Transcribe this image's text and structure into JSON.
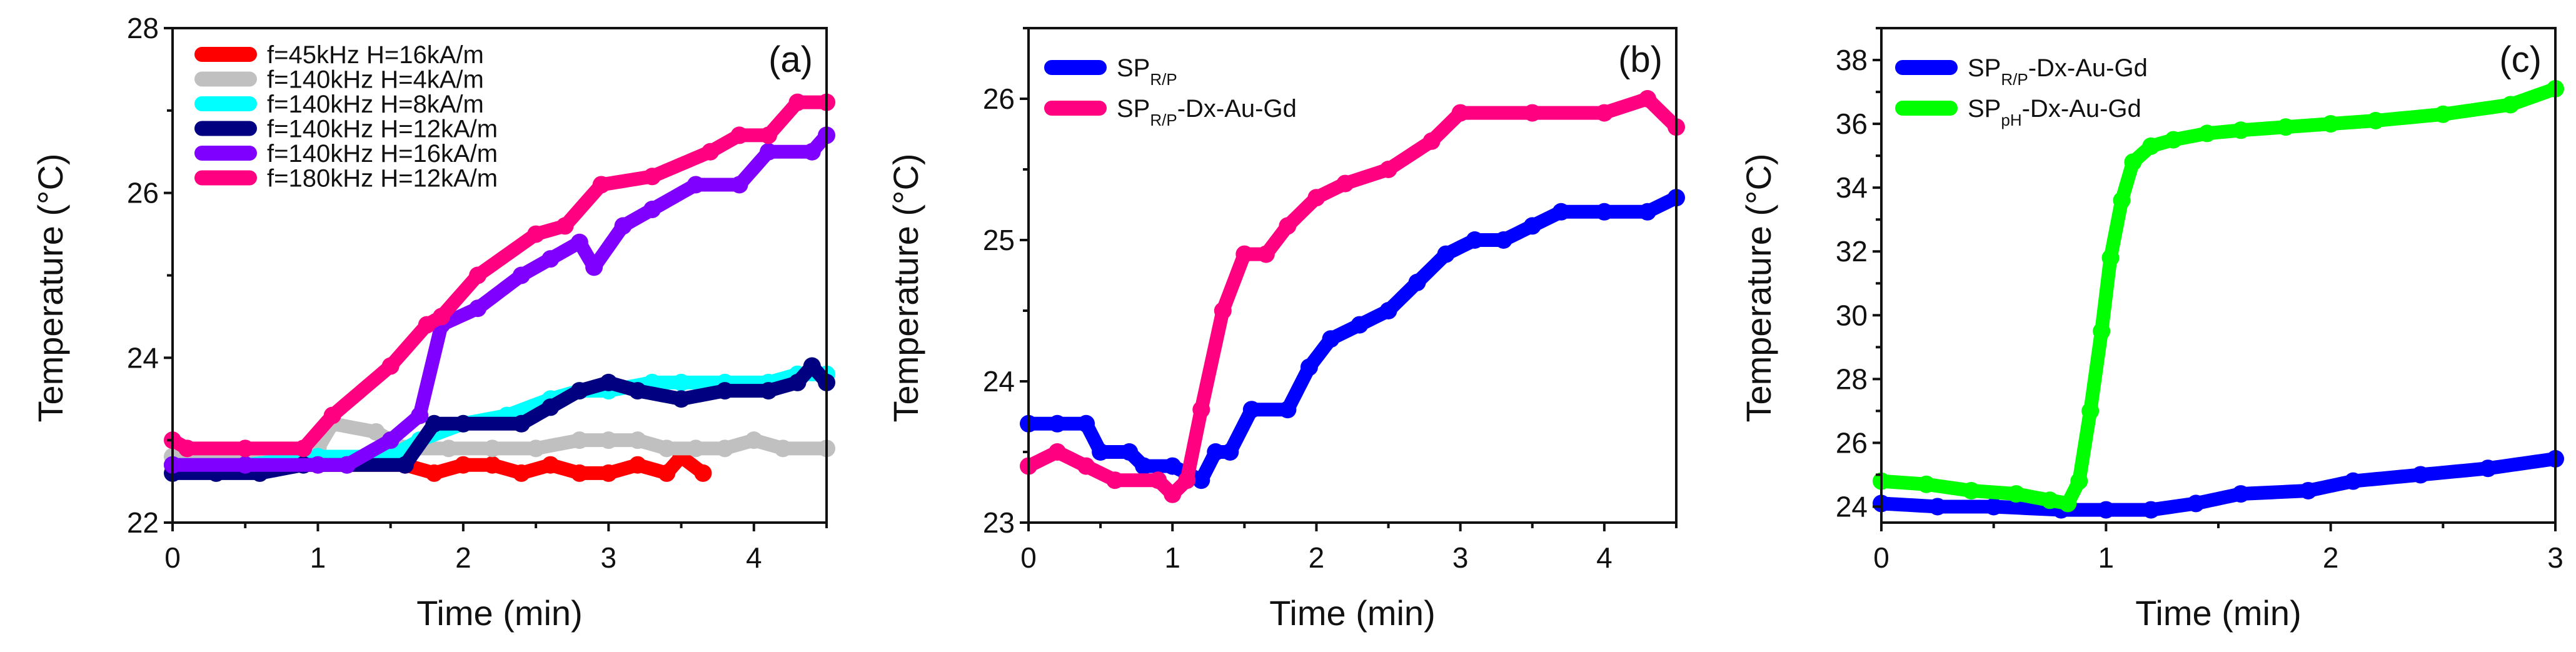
{
  "chart_data": [
    {
      "type": "scatter",
      "panel_label": "(a)",
      "xlabel": "Time (min)",
      "ylabel": "Temperature (°C)",
      "xlim": [
        0,
        4.5
      ],
      "ylim": [
        22,
        28
      ],
      "xticks": [
        0,
        1,
        2,
        3,
        4
      ],
      "yticks": [
        22,
        24,
        26,
        28
      ],
      "legend_position": "top-left",
      "grid": false,
      "series": [
        {
          "name": "f=45kHz H=16kA/m",
          "color": "#ff0000",
          "x": [
            0,
            0.5,
            1.0,
            1.6,
            1.8,
            2.0,
            2.2,
            2.4,
            2.6,
            2.8,
            3.0,
            3.2,
            3.4,
            3.5,
            3.65
          ],
          "y": [
            22.7,
            22.7,
            22.7,
            22.7,
            22.6,
            22.7,
            22.7,
            22.6,
            22.7,
            22.6,
            22.6,
            22.7,
            22.6,
            22.8,
            22.6
          ]
        },
        {
          "name": "f=140kHz H=4kA/m",
          "color": "#c0c0c0",
          "x": [
            0,
            0.5,
            1.0,
            1.1,
            1.4,
            1.6,
            1.9,
            2.2,
            2.5,
            2.8,
            3.0,
            3.2,
            3.4,
            3.6,
            3.8,
            4.0,
            4.2,
            4.5
          ],
          "y": [
            22.8,
            22.8,
            22.9,
            23.2,
            23.1,
            22.9,
            22.9,
            22.9,
            22.9,
            23.0,
            23.0,
            23.0,
            22.9,
            22.9,
            22.9,
            23.0,
            22.9,
            22.9
          ]
        },
        {
          "name": "f=140kHz H=8kA/m",
          "color": "#00ffff",
          "x": [
            0,
            0.5,
            1.0,
            1.5,
            1.7,
            2.0,
            2.3,
            2.6,
            2.8,
            3.0,
            3.3,
            3.5,
            3.8,
            4.1,
            4.3,
            4.5
          ],
          "y": [
            22.7,
            22.7,
            22.8,
            22.8,
            23.0,
            23.2,
            23.3,
            23.5,
            23.6,
            23.6,
            23.7,
            23.7,
            23.7,
            23.7,
            23.8,
            23.8
          ]
        },
        {
          "name": "f=140kHz H=12kA/m",
          "color": "#000080",
          "x": [
            0,
            0.3,
            0.6,
            0.9,
            1.2,
            1.6,
            1.8,
            2.0,
            2.4,
            2.6,
            2.8,
            3.0,
            3.2,
            3.5,
            3.8,
            4.1,
            4.3,
            4.4,
            4.5
          ],
          "y": [
            22.6,
            22.6,
            22.6,
            22.7,
            22.7,
            22.7,
            23.2,
            23.2,
            23.2,
            23.4,
            23.6,
            23.7,
            23.6,
            23.5,
            23.6,
            23.6,
            23.7,
            23.9,
            23.7
          ]
        },
        {
          "name": "f=140kHz H=16kA/m",
          "color": "#8000ff",
          "x": [
            0,
            0.5,
            1.0,
            1.2,
            1.5,
            1.7,
            1.85,
            2.1,
            2.4,
            2.6,
            2.8,
            2.9,
            3.1,
            3.3,
            3.6,
            3.9,
            4.1,
            4.4,
            4.5
          ],
          "y": [
            22.7,
            22.7,
            22.7,
            22.7,
            23.0,
            23.3,
            24.4,
            24.6,
            25.0,
            25.2,
            25.4,
            25.1,
            25.6,
            25.8,
            26.1,
            26.1,
            26.5,
            26.5,
            26.7
          ]
        },
        {
          "name": "f=180kHz H=12kA/m",
          "color": "#ff0080",
          "x": [
            0,
            0.1,
            0.5,
            0.9,
            1.1,
            1.5,
            1.75,
            1.85,
            2.1,
            2.5,
            2.7,
            2.95,
            3.3,
            3.7,
            3.9,
            4.1,
            4.3,
            4.5
          ],
          "y": [
            23.0,
            22.9,
            22.9,
            22.9,
            23.3,
            23.9,
            24.4,
            24.5,
            25.0,
            25.5,
            25.6,
            26.1,
            26.2,
            26.5,
            26.7,
            26.7,
            27.1,
            27.1
          ]
        }
      ]
    },
    {
      "type": "scatter",
      "panel_label": "(b)",
      "xlabel": "Time (min)",
      "ylabel": "Temperature (°C)",
      "xlim": [
        0,
        4.5
      ],
      "ylim": [
        23,
        26.5
      ],
      "xticks": [
        0,
        1,
        2,
        3,
        4
      ],
      "yticks": [
        23,
        24,
        25,
        26
      ],
      "legend_position": "top-left",
      "grid": false,
      "series": [
        {
          "name": "SP",
          "name_sub": "R/P",
          "name_suffix": "",
          "color": "#0000ff",
          "x": [
            0,
            0.2,
            0.4,
            0.5,
            0.7,
            0.8,
            1.0,
            1.2,
            1.3,
            1.4,
            1.55,
            1.8,
            1.95,
            2.1,
            2.3,
            2.5,
            2.7,
            2.9,
            3.1,
            3.3,
            3.5,
            3.7,
            4.0,
            4.3,
            4.5
          ],
          "y": [
            23.7,
            23.7,
            23.7,
            23.5,
            23.5,
            23.4,
            23.4,
            23.3,
            23.5,
            23.5,
            23.8,
            23.8,
            24.1,
            24.3,
            24.4,
            24.5,
            24.7,
            24.9,
            25.0,
            25.0,
            25.1,
            25.2,
            25.2,
            25.2,
            25.3
          ]
        },
        {
          "name": "SP",
          "name_sub": "R/P",
          "name_suffix": "-Dx-Au-Gd",
          "color": "#ff0080",
          "x": [
            0,
            0.2,
            0.4,
            0.6,
            0.9,
            1.0,
            1.1,
            1.2,
            1.35,
            1.5,
            1.65,
            1.8,
            2.0,
            2.2,
            2.5,
            2.8,
            3.0,
            3.5,
            4.0,
            4.3,
            4.5
          ],
          "y": [
            23.4,
            23.5,
            23.4,
            23.3,
            23.3,
            23.2,
            23.3,
            23.8,
            24.5,
            24.9,
            24.9,
            25.1,
            25.3,
            25.4,
            25.5,
            25.7,
            25.9,
            25.9,
            25.9,
            26.0,
            25.8
          ]
        }
      ]
    },
    {
      "type": "scatter",
      "panel_label": "(c)",
      "xlabel": "Time (min)",
      "ylabel": "Temperature (°C)",
      "xlim": [
        0,
        3
      ],
      "ylim": [
        23.5,
        39
      ],
      "xticks": [
        0,
        1,
        2,
        3
      ],
      "yticks": [
        24,
        26,
        28,
        30,
        32,
        34,
        36,
        38
      ],
      "legend_position": "top-left",
      "grid": false,
      "series": [
        {
          "name": "SP",
          "name_sub": "R/P",
          "name_suffix": "-Dx-Au-Gd",
          "color": "#0000ff",
          "x": [
            0,
            0.25,
            0.5,
            0.8,
            1.0,
            1.2,
            1.4,
            1.6,
            1.9,
            2.1,
            2.4,
            2.7,
            3.0
          ],
          "y": [
            24.1,
            24.0,
            24.0,
            23.9,
            23.9,
            23.9,
            24.1,
            24.4,
            24.5,
            24.8,
            25.0,
            25.2,
            25.5
          ]
        },
        {
          "name": "SP",
          "name_sub": "pH",
          "name_suffix": "-Dx-Au-Gd",
          "color": "#00ff00",
          "x": [
            0,
            0.2,
            0.4,
            0.6,
            0.75,
            0.83,
            0.88,
            0.93,
            0.98,
            1.02,
            1.07,
            1.12,
            1.2,
            1.3,
            1.45,
            1.6,
            1.8,
            2.0,
            2.2,
            2.5,
            2.8,
            3.0
          ],
          "y": [
            24.8,
            24.7,
            24.5,
            24.4,
            24.2,
            24.1,
            24.8,
            27.0,
            29.5,
            31.8,
            33.6,
            34.8,
            35.3,
            35.5,
            35.7,
            35.8,
            35.9,
            36.0,
            36.1,
            36.3,
            36.6,
            37.1
          ]
        }
      ]
    }
  ]
}
